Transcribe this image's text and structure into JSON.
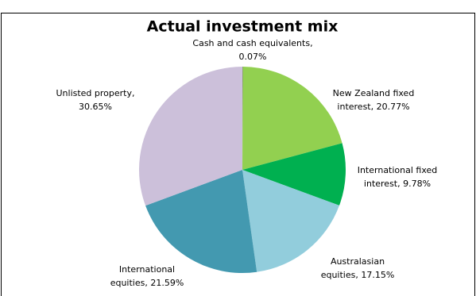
{
  "chart_data": {
    "type": "pie",
    "title": "Actual investment mix",
    "categories": [
      "Cash and cash equivalents",
      "New Zealand fixed interest",
      "International fixed interest",
      "Australasian equities",
      "International equities",
      "Unlisted property"
    ],
    "values": [
      0.07,
      20.77,
      9.78,
      17.15,
      21.59,
      30.65
    ],
    "value_labels": [
      [
        "Cash and cash equivalents,",
        "0.07%"
      ],
      [
        "New Zealand fixed",
        "interest, 20.77%"
      ],
      [
        "International fixed",
        "interest, 9.78%"
      ],
      [
        "Australasian",
        "equities, 17.15%"
      ],
      [
        "International",
        "equities, 21.59%"
      ],
      [
        "Unlisted property,",
        "30.65%"
      ]
    ],
    "colors": [
      "#7f7f7f",
      "#92d050",
      "#00b050",
      "#92cddc",
      "#4399b0",
      "#ccc0da"
    ]
  }
}
